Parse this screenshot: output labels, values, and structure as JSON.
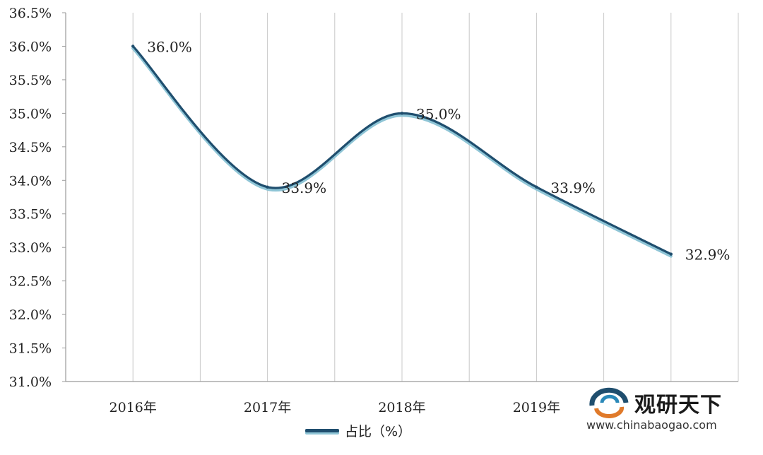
{
  "chart_data": {
    "type": "line",
    "categories": [
      "2016年",
      "2017年",
      "2018年",
      "2019年",
      "2020年"
    ],
    "series": [
      {
        "name": "占比（%）",
        "values": [
          36.0,
          33.9,
          35.0,
          33.9,
          32.9
        ]
      }
    ],
    "data_labels": [
      "36.0%",
      "33.9%",
      "35.0%",
      "33.9%",
      "32.9%"
    ],
    "visible_x_tick_labels": [
      "2016年",
      "2017年",
      "2018年",
      "2019年"
    ],
    "y_ticks": [
      "31.0%",
      "31.5%",
      "32.0%",
      "32.5%",
      "33.0%",
      "33.5%",
      "34.0%",
      "34.5%",
      "35.0%",
      "35.5%",
      "36.0%",
      "36.5%"
    ],
    "ylim": [
      31.0,
      36.5
    ],
    "grid": "vertical",
    "legend_position": "bottom",
    "line_color": "#1f4e6e",
    "shadow_color": "#8fc5d6"
  },
  "legend": {
    "label": "占比（%）"
  },
  "watermark": {
    "title": "观研天下",
    "url": "www.chinabaogao.com"
  }
}
